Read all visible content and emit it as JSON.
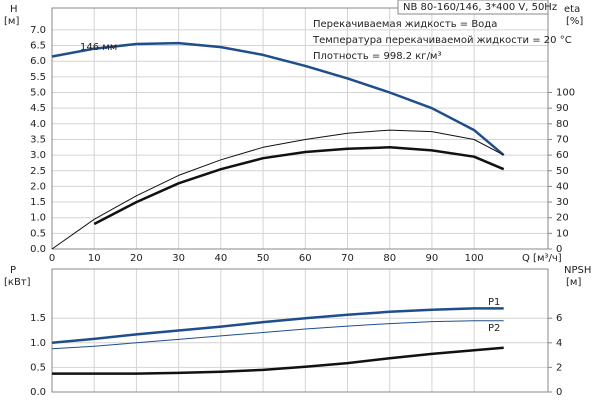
{
  "chart_data": [
    {
      "type": "line",
      "annotations": [
        "NB 80-160/146, 3*400 V, 50Hz",
        "Перекачиваемая жидкость = Вода",
        "Температура перекачиваемой жидкости = 20 °C",
        "Плотность = 998.2 кг/м³"
      ],
      "ylabel": "H",
      "yunit": "[м]",
      "y2label": "eta",
      "y2unit": "[%]",
      "xlabel": "Q [м³/ч]",
      "x": [
        0,
        10,
        20,
        30,
        40,
        50,
        60,
        70,
        80,
        90,
        100,
        107
      ],
      "xlim": [
        0,
        117.5
      ],
      "xticks": [
        0,
        10,
        20,
        30,
        40,
        50,
        60,
        70,
        80,
        90,
        100
      ],
      "ylim": [
        0,
        7.7
      ],
      "yticks": [
        {
          "value": 0,
          "label": "0.0"
        },
        0.5,
        {
          "value": 1,
          "label": "1.0"
        },
        1.5,
        {
          "value": 2,
          "label": "2.0"
        },
        2.5,
        {
          "value": 3,
          "label": "3.0"
        },
        3.5,
        {
          "value": 4,
          "label": "4.0"
        },
        4.5,
        {
          "value": 5,
          "label": "5.0"
        },
        5.5,
        {
          "value": 6,
          "label": "6.0"
        },
        6.5,
        {
          "value": 7,
          "label": "7.0"
        }
      ],
      "y2lim": [
        0,
        154
      ],
      "y2ticks": [
        0,
        10,
        20,
        30,
        40,
        50,
        60,
        70,
        80,
        90,
        100
      ],
      "grid": true,
      "series": [
        {
          "name": "146 мм",
          "color": "#1f4e8c",
          "linewidth": 2.5,
          "values": [
            6.15,
            6.4,
            6.55,
            6.58,
            6.45,
            6.2,
            5.85,
            5.45,
            5.0,
            4.5,
            3.8,
            3.0
          ]
        },
        {
          "color": "#111111",
          "linewidth": 1,
          "axis": "y2",
          "values": [
            0,
            19,
            34,
            47,
            57,
            65,
            70,
            74,
            76,
            75,
            70,
            60
          ]
        },
        {
          "color": "#111111",
          "linewidth": 2.5,
          "axis": "y2",
          "values": [
            null,
            16,
            30,
            42,
            51,
            58,
            62,
            64,
            65,
            63,
            59,
            51
          ]
        }
      ]
    },
    {
      "type": "line",
      "ylabel": "P",
      "yunit": "[кВт]",
      "y2label": "NPSH",
      "y2unit": "[м]",
      "x": [
        0,
        10,
        20,
        30,
        40,
        50,
        60,
        70,
        80,
        90,
        100,
        107
      ],
      "xlim": [
        0,
        117.5
      ],
      "xticks": [
        0,
        10,
        20,
        30,
        40,
        50,
        60,
        70,
        80,
        90,
        100
      ],
      "ylim": [
        0,
        2.5
      ],
      "yticks": [
        {
          "value": 0,
          "label": "0.0"
        },
        0.5,
        {
          "value": 1,
          "label": "1.0"
        },
        1.5
      ],
      "y2lim": [
        0,
        10
      ],
      "y2ticks": [
        0,
        2,
        4,
        6
      ],
      "grid": true,
      "series": [
        {
          "name": "P1",
          "color": "#1f4e8c",
          "linewidth": 2.5,
          "values": [
            1.0,
            1.08,
            1.17,
            1.25,
            1.33,
            1.42,
            1.5,
            1.57,
            1.63,
            1.67,
            1.7,
            1.7
          ]
        },
        {
          "name": "P2",
          "color": "#1f4e8c",
          "linewidth": 1,
          "values": [
            0.88,
            0.93,
            1.0,
            1.07,
            1.14,
            1.21,
            1.28,
            1.34,
            1.39,
            1.43,
            1.45,
            1.45
          ]
        },
        {
          "color": "#111111",
          "linewidth": 2.5,
          "axis": "y2",
          "values": [
            1.5,
            1.5,
            1.5,
            1.55,
            1.65,
            1.8,
            2.05,
            2.35,
            2.75,
            3.1,
            3.4,
            3.6
          ]
        }
      ]
    }
  ]
}
